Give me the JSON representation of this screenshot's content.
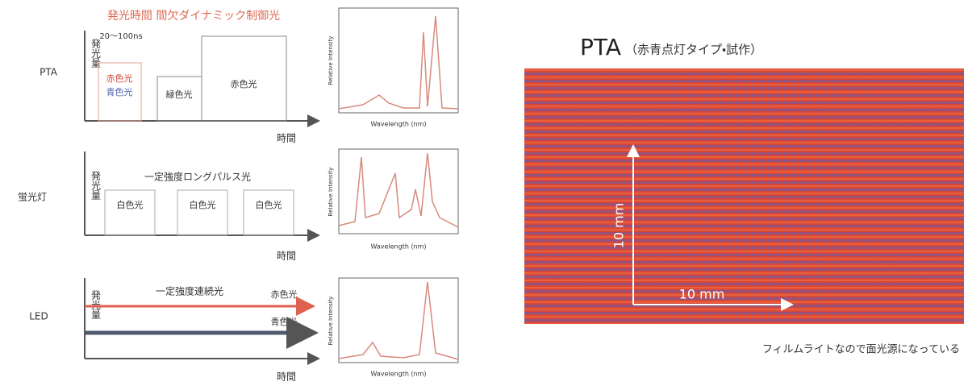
{
  "left": {
    "title": "発光時間 間欠ダイナミック制御光",
    "pta": {
      "label": "PTA",
      "y_label": "発光量",
      "x_label": "時間",
      "pulse_width": "20～100ns",
      "red_label": "赤色光",
      "blue_label": "青色光",
      "box_green": "緑色光",
      "box_red": "赤色光"
    },
    "fluorescent": {
      "label": "蛍光灯",
      "y_label": "発光量",
      "x_label": "時間",
      "caption": "一定強度ロングパルス光",
      "boxes": [
        "白色光",
        "白色光",
        "白色光"
      ]
    },
    "led": {
      "label": "LED",
      "y_label": "発光量",
      "x_label": "時間",
      "caption": "一定強度連続光",
      "red_label": "赤色光",
      "blue_label": "青色光"
    },
    "spectrum": {
      "x_label": "Wavelength (nm)",
      "y_label": "Relative Intensity"
    }
  },
  "right": {
    "title": "PTA",
    "subtitle": "（赤青点灯タイプ・試作）",
    "vertical_scale": "10 mm",
    "horizontal_scale": "10 mm",
    "caption": "フィルムライトなので面光源になっている"
  }
}
